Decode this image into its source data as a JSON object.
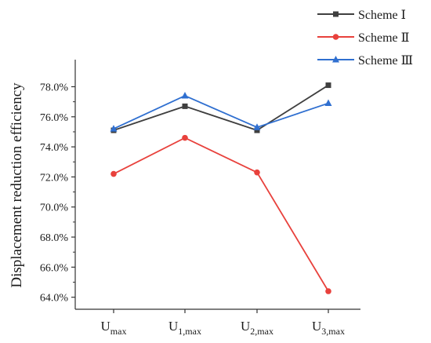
{
  "chart_data": {
    "type": "line",
    "categories": [
      {
        "main": "U",
        "sub": "max"
      },
      {
        "main": "U",
        "sub": "1,max"
      },
      {
        "main": "U",
        "sub": "2,max"
      },
      {
        "main": "U",
        "sub": "3,max"
      }
    ],
    "series": [
      {
        "name": "Scheme Ⅰ",
        "color": "#3f3f3f",
        "marker": "square",
        "values": [
          75.1,
          76.7,
          75.1,
          78.1
        ]
      },
      {
        "name": "Scheme Ⅱ",
        "color": "#e8413c",
        "marker": "circle",
        "values": [
          72.2,
          74.6,
          72.3,
          64.4
        ]
      },
      {
        "name": "Scheme Ⅲ",
        "color": "#2f6fd0",
        "marker": "triangle",
        "values": [
          75.2,
          77.4,
          75.3,
          76.9
        ]
      }
    ],
    "ylabel": "Displacement reduction efficiency",
    "xlabel": "",
    "ylim": [
      63.2,
      79.8
    ],
    "yticks": [
      "64.0%",
      "66.0%",
      "68.0%",
      "70.0%",
      "72.0%",
      "74.0%",
      "76.0%",
      "78.0%"
    ],
    "ytick_values": [
      64,
      66,
      68,
      70,
      72,
      74,
      76,
      78
    ],
    "grid": false,
    "legend": "top-right"
  }
}
